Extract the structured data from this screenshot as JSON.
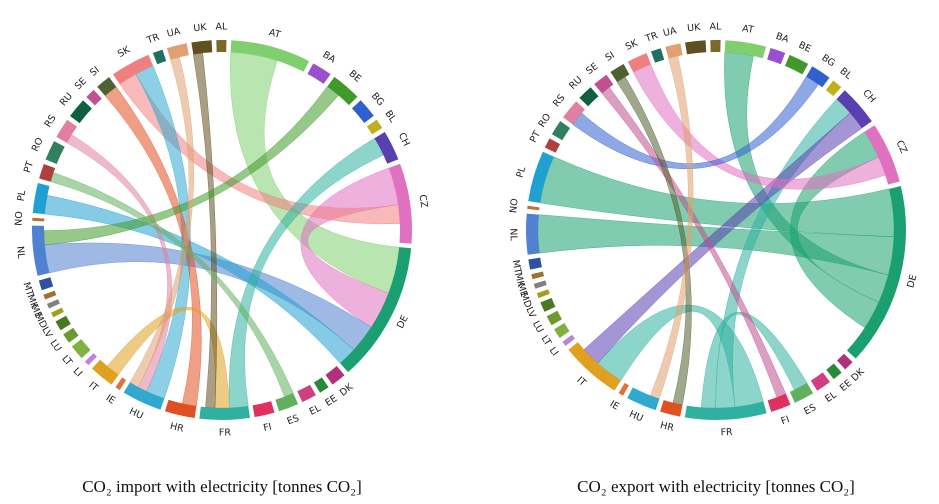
{
  "chart_data": [
    {
      "type": "chord",
      "title": "CO₂ import with electricity [tonnes CO₂]",
      "categories": [
        "AL",
        "AT",
        "BA",
        "BE",
        "BG",
        "BL",
        "CH",
        "CZ",
        "DE",
        "DK",
        "EE",
        "EL",
        "ES",
        "FI",
        "FR",
        "HR",
        "HU",
        "IE",
        "IT",
        "LI",
        "LT",
        "LU",
        "LV",
        "MD",
        "ME",
        "MK",
        "MT",
        "NL",
        "NO",
        "PL",
        "PT",
        "RO",
        "RS",
        "RU",
        "SE",
        "SI",
        "SK",
        "TR",
        "UA",
        "UK"
      ],
      "values": [
        1,
        8,
        2,
        3,
        2,
        1,
        3,
        8,
        14,
        1.5,
        1,
        1.5,
        2,
        2,
        5,
        3,
        4,
        0.5,
        2.5,
        0.5,
        1.5,
        1,
        1,
        0.5,
        0.5,
        0.5,
        1,
        5,
        0.3,
        3,
        1.5,
        2,
        2,
        2,
        1,
        1.5,
        4,
        1,
        2,
        2
      ],
      "colors": [
        "#7a6a2a",
        "#7fcf6f",
        "#9a4fd0",
        "#3f9a2a",
        "#3060d0",
        "#c0b020",
        "#5a3fb0",
        "#e070c0",
        "#1aa070",
        "#b0307a",
        "#2a8a3a",
        "#d04080",
        "#60b060",
        "#e03060",
        "#30b0a0",
        "#e05020",
        "#30a8d0",
        "#e07040",
        "#e0a020",
        "#c080e0",
        "#80b040",
        "#6a9a30",
        "#4a7a20",
        "#a0a020",
        "#808080",
        "#a07030",
        "#3050a0",
        "#5080d0",
        "#c07030",
        "#20a0d0",
        "#b04040",
        "#308060",
        "#e080a0",
        "#106040",
        "#c05090",
        "#506030",
        "#f08080",
        "#207060",
        "#e0a070",
        "#605020"
      ],
      "links": [
        {
          "source": "AT",
          "target": "DE",
          "value": 5
        },
        {
          "source": "CZ",
          "target": "DE",
          "value": 4
        },
        {
          "source": "NL",
          "target": "DE",
          "value": 3
        },
        {
          "source": "PL",
          "target": "DE",
          "value": 2
        },
        {
          "source": "SK",
          "target": "CZ",
          "value": 2
        },
        {
          "source": "HU",
          "target": "SK",
          "value": 2
        },
        {
          "source": "FR",
          "target": "CH",
          "value": 2
        },
        {
          "source": "HR",
          "target": "SI",
          "value": 1.5
        },
        {
          "source": "IT",
          "target": "FR",
          "value": 1.5
        },
        {
          "source": "RS",
          "target": "HU",
          "value": 1
        },
        {
          "source": "UK",
          "target": "FR",
          "value": 1
        },
        {
          "source": "BE",
          "target": "NL",
          "value": 1.5
        },
        {
          "source": "UA",
          "target": "HU",
          "value": 1
        },
        {
          "source": "ES",
          "target": "PT",
          "value": 1
        }
      ]
    },
    {
      "type": "chord",
      "title": "CO₂ export with electricity [tonnes CO₂]",
      "categories": [
        "AL",
        "AT",
        "BA",
        "BE",
        "BG",
        "BL",
        "CH",
        "CZ",
        "DE",
        "DK",
        "EE",
        "EL",
        "ES",
        "FI",
        "FR",
        "HR",
        "HU",
        "IE",
        "IT",
        "LI",
        "LT",
        "LU",
        "LV",
        "MD",
        "ME",
        "MK",
        "MT",
        "NL",
        "NO",
        "PL",
        "PT",
        "RO",
        "RS",
        "RU",
        "SE",
        "SI",
        "SK",
        "TR",
        "UA",
        "UK"
      ],
      "values": [
        1,
        4,
        1.5,
        2,
        2,
        1,
        4,
        6,
        18,
        1,
        1,
        1.5,
        2,
        2,
        8,
        2,
        3,
        0.5,
        6,
        0.5,
        1,
        1,
        1,
        0.5,
        0.5,
        0.5,
        1,
        4,
        0.3,
        5,
        1,
        1.5,
        2,
        1.5,
        1.5,
        1.5,
        2,
        1,
        1.5,
        2
      ],
      "colors": [
        "#7a6a2a",
        "#7fcf6f",
        "#9a4fd0",
        "#3f9a2a",
        "#3060d0",
        "#c0b020",
        "#5a3fb0",
        "#e070c0",
        "#1aa070",
        "#b0307a",
        "#2a8a3a",
        "#d04080",
        "#60b060",
        "#e03060",
        "#30b0a0",
        "#e05020",
        "#30a8d0",
        "#e07040",
        "#e0a020",
        "#c080e0",
        "#80b040",
        "#6a9a30",
        "#4a7a20",
        "#a0a020",
        "#808080",
        "#a07030",
        "#3050a0",
        "#5080d0",
        "#c07030",
        "#20a0d0",
        "#b04040",
        "#308060",
        "#e080a0",
        "#106040",
        "#c05090",
        "#506030",
        "#f08080",
        "#207060",
        "#e0a070",
        "#605020"
      ],
      "links": [
        {
          "source": "DE",
          "target": "PL",
          "value": 5
        },
        {
          "source": "DE",
          "target": "NL",
          "value": 4
        },
        {
          "source": "DE",
          "target": "AT",
          "value": 3
        },
        {
          "source": "DE",
          "target": "CZ",
          "value": 3
        },
        {
          "source": "FR",
          "target": "IT",
          "value": 3
        },
        {
          "source": "FR",
          "target": "CH",
          "value": 2
        },
        {
          "source": "CH",
          "target": "IT",
          "value": 2
        },
        {
          "source": "CZ",
          "target": "SK",
          "value": 2
        },
        {
          "source": "BG",
          "target": "RS",
          "value": 1.5
        },
        {
          "source": "FR",
          "target": "ES",
          "value": 1.5
        },
        {
          "source": "SE",
          "target": "FI",
          "value": 1
        },
        {
          "source": "SI",
          "target": "HR",
          "value": 1
        },
        {
          "source": "UA",
          "target": "HU",
          "value": 1
        }
      ]
    }
  ]
}
